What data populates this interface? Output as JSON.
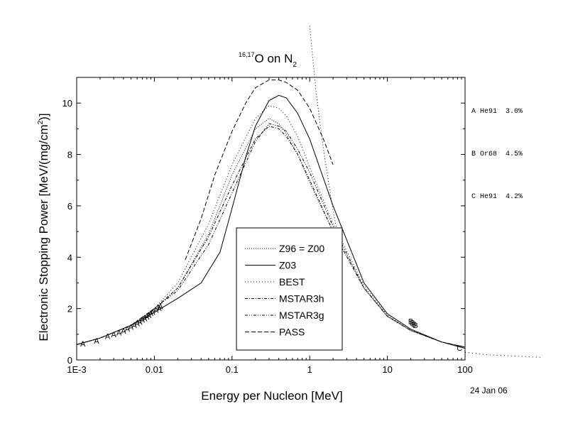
{
  "references": [
    {
      "id": "A",
      "text": "A He91  3.0%"
    },
    {
      "id": "B",
      "text": "B Or68  4.5%"
    },
    {
      "id": "C",
      "text": "C He91  4.2%"
    }
  ],
  "date_stamp": "24 Jan 06",
  "chart_data": {
    "type": "line",
    "title": {
      "sup": "16,17",
      "main": "O on N",
      "sub": "2"
    },
    "xlabel": "Energy per Nucleon [MeV]",
    "ylabel": {
      "main": "Electronic Stopping Power [MeV/(mg/cm",
      "sup": "2",
      "tail": ")]"
    },
    "x_scale": "log",
    "xlim": [
      0.001,
      100
    ],
    "ylim": [
      0,
      11
    ],
    "x_ticks": [
      {
        "value": 0.001,
        "label": "1E-3"
      },
      {
        "value": 0.01,
        "label": "0.01"
      },
      {
        "value": 0.1,
        "label": "0.1"
      },
      {
        "value": 1,
        "label": "1"
      },
      {
        "value": 10,
        "label": "10"
      },
      {
        "value": 100,
        "label": "100"
      }
    ],
    "y_ticks": [
      {
        "value": 0,
        "label": "0"
      },
      {
        "value": 2,
        "label": "2"
      },
      {
        "value": 4,
        "label": "4"
      },
      {
        "value": 6,
        "label": "6"
      },
      {
        "value": 8,
        "label": "8"
      },
      {
        "value": 10,
        "label": "10"
      }
    ],
    "legend_position": "center-bottom",
    "series": [
      {
        "name": "Z96 = Z00",
        "dash": "1,2",
        "x": [
          0.001,
          0.002,
          0.005,
          0.01,
          0.02,
          0.05,
          0.1,
          0.2,
          0.3,
          0.4,
          0.5,
          0.7,
          1,
          2,
          5,
          10,
          20,
          50,
          100
        ],
        "y": [
          0.6,
          0.85,
          1.35,
          1.95,
          2.8,
          4.9,
          7.2,
          9.0,
          9.4,
          9.2,
          8.8,
          8.0,
          6.9,
          5.0,
          2.8,
          1.7,
          1.15,
          0.7,
          0.5
        ]
      },
      {
        "name": "Z03",
        "dash": "",
        "x": [
          0.001,
          0.002,
          0.005,
          0.01,
          0.02,
          0.04,
          0.07,
          0.1,
          0.15,
          0.2,
          0.3,
          0.4,
          0.5,
          0.7,
          1,
          2,
          5,
          10,
          20,
          50,
          100
        ],
        "y": [
          0.6,
          0.85,
          1.35,
          1.85,
          2.4,
          3.0,
          4.2,
          5.9,
          7.9,
          9.1,
          10.1,
          10.3,
          10.2,
          9.6,
          8.6,
          6.0,
          3.0,
          1.8,
          1.2,
          0.7,
          0.45
        ]
      },
      {
        "name": "BEST",
        "dash": "1,3",
        "x": [
          0.001,
          0.002,
          0.005,
          0.01,
          0.02,
          0.05,
          0.1,
          0.2,
          0.3,
          0.4,
          0.5,
          0.7,
          1,
          2,
          5,
          10,
          20,
          50,
          100
        ],
        "y": [
          0.6,
          0.85,
          1.35,
          2.0,
          3.0,
          5.3,
          7.6,
          9.4,
          9.9,
          9.8,
          9.5,
          8.7,
          7.5,
          5.3,
          2.9,
          1.75,
          1.15,
          0.7,
          0.5
        ]
      },
      {
        "name": "MSTAR3h",
        "dash": "4,2,1,2",
        "x": [
          0.001,
          0.002,
          0.005,
          0.01,
          0.02,
          0.05,
          0.1,
          0.2,
          0.3,
          0.4,
          0.5,
          0.7,
          1,
          2,
          5,
          10,
          20,
          50,
          100
        ],
        "y": [
          0.6,
          0.85,
          1.35,
          2.0,
          2.8,
          4.8,
          6.8,
          8.6,
          9.1,
          9.0,
          8.7,
          8.0,
          7.0,
          5.0,
          2.8,
          1.7,
          1.15,
          0.7,
          0.5
        ]
      },
      {
        "name": "MSTAR3g",
        "dash": "4,2,1,2,1,2",
        "x": [
          0.001,
          0.002,
          0.005,
          0.01,
          0.02,
          0.05,
          0.1,
          0.2,
          0.3,
          0.4,
          0.5,
          0.7,
          1,
          2,
          5,
          10,
          20,
          50,
          100
        ],
        "y": [
          0.6,
          0.85,
          1.35,
          2.0,
          2.7,
          4.5,
          6.5,
          8.5,
          9.2,
          9.1,
          8.9,
          8.2,
          7.3,
          5.2,
          2.8,
          1.7,
          1.15,
          0.7,
          0.5
        ]
      },
      {
        "name": "PASS",
        "dash": "6,3",
        "x": [
          0.025,
          0.04,
          0.06,
          0.1,
          0.15,
          0.2,
          0.3,
          0.4,
          0.5,
          0.7,
          1,
          1.5,
          2
        ],
        "y": [
          3.9,
          5.5,
          7.2,
          8.9,
          10.0,
          10.6,
          10.9,
          10.9,
          10.8,
          10.5,
          9.8,
          8.6,
          7.6
        ]
      }
    ],
    "extra_curves": [
      {
        "dash": "1,3",
        "x": [
          1.0,
          1.2,
          1.5,
          2.0,
          2.4
        ],
        "y": [
          13.0,
          10.5,
          8.2,
          5.8,
          4.6
        ],
        "clip": false
      },
      {
        "dash": "1,4",
        "x": [
          100,
          200,
          1000
        ],
        "y": [
          0.3,
          0.2,
          0.1
        ],
        "clip": false
      }
    ],
    "markers": [
      {
        "label": "A",
        "x": [
          0.0012,
          0.0018,
          0.0025,
          0.003,
          0.0035,
          0.004,
          0.0045,
          0.005,
          0.0055,
          0.006,
          0.0065,
          0.007,
          0.0075,
          0.008,
          0.0085,
          0.009,
          0.0095,
          0.0105,
          0.0115,
          0.012
        ],
        "y": [
          0.63,
          0.75,
          0.92,
          1.0,
          1.07,
          1.14,
          1.21,
          1.28,
          1.35,
          1.42,
          1.48,
          1.56,
          1.62,
          1.68,
          1.74,
          1.82,
          1.87,
          1.95,
          2.02,
          2.08
        ]
      },
      {
        "label": "B",
        "x": [
          20,
          21,
          22,
          23
        ],
        "y": [
          1.5,
          1.45,
          1.4,
          1.35
        ]
      },
      {
        "label": "C",
        "x": [
          85
        ],
        "y": [
          0.47
        ]
      }
    ]
  }
}
